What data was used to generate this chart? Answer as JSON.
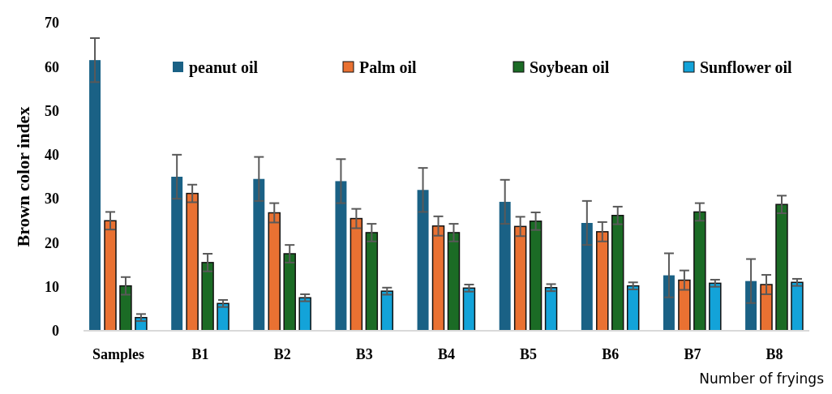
{
  "chart_data": {
    "type": "bar",
    "xlabel": "Number of fryings",
    "ylabel": "Brown color index",
    "categories": [
      "Samples",
      "B1",
      "B2",
      "B3",
      "B4",
      "B5",
      "B6",
      "B7",
      "B8"
    ],
    "ylim": [
      0,
      70
    ],
    "yticks": [
      0,
      10,
      20,
      30,
      40,
      50,
      60,
      70
    ],
    "grid": false,
    "legend": "top",
    "series": [
      {
        "name": "peanut oil",
        "color": "#1a6185",
        "values": [
          61.5,
          35,
          34.5,
          34,
          32,
          29.3,
          24.5,
          12.6,
          11.3
        ],
        "errors": [
          5,
          5,
          5,
          5,
          5,
          5,
          5,
          5,
          5
        ]
      },
      {
        "name": "Palm oil",
        "color": "#e97132",
        "values": [
          25,
          31.2,
          26.8,
          25.5,
          23.8,
          23.7,
          22.5,
          11.5,
          10.5
        ],
        "errors": [
          2,
          2,
          2.2,
          2.2,
          2.2,
          2.2,
          2.2,
          2.2,
          2.2
        ]
      },
      {
        "name": "Soybean oil",
        "color": "#1b6b25",
        "values": [
          10.2,
          15.5,
          17.5,
          22.3,
          22.3,
          24.9,
          26.2,
          27,
          28.7
        ],
        "errors": [
          2,
          2,
          2,
          2,
          2,
          2,
          2,
          2,
          2
        ]
      },
      {
        "name": "Sunflower oil",
        "color": "#13a3d9",
        "values": [
          3,
          6.2,
          7.5,
          9,
          9.7,
          9.8,
          10.2,
          10.8,
          11
        ],
        "errors": [
          0.8,
          0.8,
          0.8,
          0.8,
          0.8,
          0.8,
          0.8,
          0.8,
          0.8
        ]
      }
    ]
  }
}
